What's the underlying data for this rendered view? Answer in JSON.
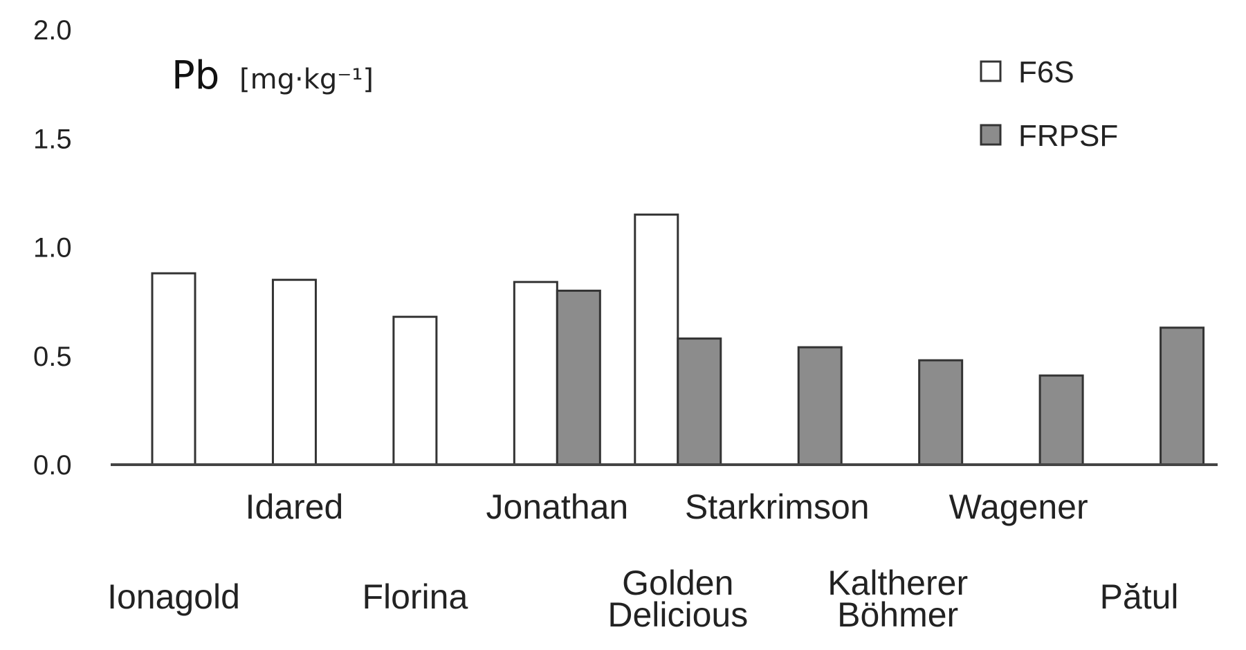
{
  "chart_data": {
    "type": "bar",
    "ylabel": "Pb",
    "ylabel_unit": "[mg·kg⁻¹]",
    "ylim": [
      0,
      2.0
    ],
    "yticks": [
      "0.0",
      "0.5",
      "1.0",
      "1.5",
      "2.0"
    ],
    "categories": [
      {
        "label": "Ionagold",
        "row": "lower"
      },
      {
        "label": "Idared",
        "row": "upper"
      },
      {
        "label": "Florina",
        "row": "lower"
      },
      {
        "label": "Jonathan",
        "row": "upper"
      },
      {
        "label": "Golden Delicious",
        "row": "lower",
        "lines": [
          "Golden",
          "Delicious"
        ]
      },
      {
        "label": "Starkrimson",
        "row": "upper"
      },
      {
        "label": "Kaltherer Böhmer",
        "row": "lower",
        "lines": [
          "Kaltherer",
          "Böhmer"
        ]
      },
      {
        "label": "Wagener",
        "row": "upper"
      },
      {
        "label": "Pătul",
        "row": "lower"
      }
    ],
    "series": [
      {
        "name": "F6S",
        "color": "#ffffff",
        "values": [
          0.88,
          0.85,
          0.68,
          0.84,
          1.15,
          null,
          null,
          null,
          null
        ]
      },
      {
        "name": "FRPSF",
        "color": "#8c8c8c",
        "values": [
          null,
          null,
          null,
          0.8,
          0.58,
          0.54,
          0.48,
          0.41,
          0.63
        ]
      }
    ],
    "legend_position": "top-right",
    "grid": false
  }
}
